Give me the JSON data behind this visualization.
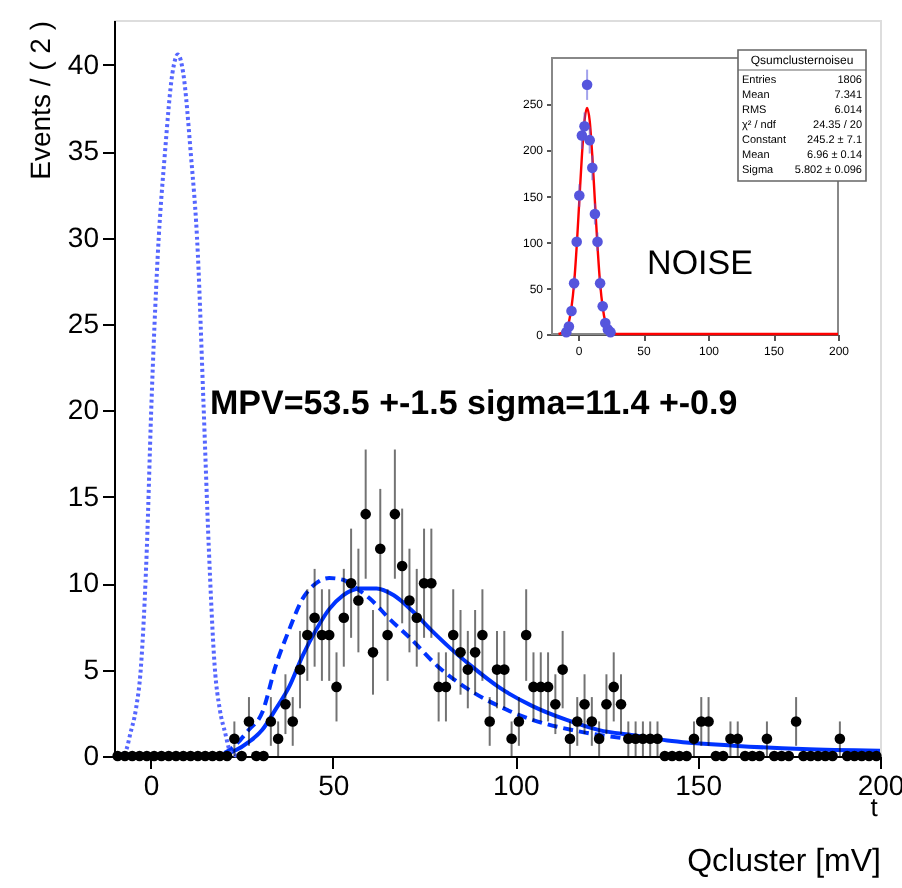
{
  "chart_data": [
    {
      "type": "scatter",
      "xlabel": "Qcluster [mV]",
      "ylabel": "Events / ( 2 )",
      "annotations": [
        "MPV=53.5 +-1.5 sigma=11.4 +-0.9",
        "t"
      ],
      "xlim": [
        -10,
        200
      ],
      "xticks": [
        0,
        50,
        100,
        150,
        200
      ],
      "ylim": [
        0,
        42.6
      ],
      "yticks": [
        0,
        5,
        10,
        15,
        20,
        25,
        30,
        35,
        40
      ],
      "series": [
        {
          "color": "#000000",
          "marker": "circle",
          "x": [
            -9,
            -7,
            -5,
            -3,
            -1,
            1,
            3,
            5,
            7,
            9,
            11,
            13,
            15,
            17,
            19,
            21,
            23,
            25,
            27,
            29,
            31,
            33,
            35,
            37,
            39,
            41,
            43,
            45,
            47,
            49,
            51,
            53,
            55,
            57,
            59,
            61,
            63,
            65,
            67,
            69,
            71,
            73,
            75,
            77,
            79,
            81,
            83,
            85,
            87,
            89,
            91,
            93,
            95,
            97,
            99,
            101,
            103,
            105,
            107,
            109,
            111,
            113,
            115,
            117,
            119,
            121,
            123,
            125,
            127,
            129,
            131,
            133,
            135,
            137,
            139,
            141,
            143,
            145,
            147,
            149,
            151,
            153,
            155,
            157,
            159,
            161,
            163,
            165,
            167,
            169,
            171,
            173,
            175,
            177,
            179,
            181,
            183,
            185,
            187,
            189,
            191,
            193,
            195,
            197,
            199
          ],
          "values": [
            0,
            0,
            0,
            0,
            0,
            0,
            0,
            0,
            0,
            0,
            0,
            0,
            0,
            0,
            0,
            0,
            1,
            0,
            2,
            0,
            0,
            2,
            1,
            3,
            2,
            5,
            7,
            8,
            7,
            7,
            4,
            8,
            10,
            9,
            14,
            6,
            12,
            7,
            14,
            11,
            9,
            8,
            10,
            10,
            4,
            4,
            7,
            6,
            5,
            6,
            7,
            2,
            5,
            5,
            1,
            2,
            7,
            4,
            4,
            4,
            3,
            5,
            1,
            2,
            3,
            2,
            1,
            3,
            4,
            3,
            1,
            1,
            1,
            1,
            1,
            0,
            0,
            0,
            0,
            1,
            2,
            2,
            0,
            0,
            1,
            1,
            0,
            0,
            0,
            1,
            0,
            0,
            0,
            2,
            0,
            0,
            0,
            0,
            0,
            1,
            0,
            0,
            0,
            0,
            0
          ],
          "errors": [
            null,
            null,
            null,
            null,
            null,
            null,
            null,
            null,
            null,
            null,
            null,
            null,
            null,
            null,
            null,
            null,
            1,
            null,
            1.41,
            null,
            null,
            1.41,
            1,
            1.73,
            1.41,
            2.24,
            2.65,
            2.83,
            2.65,
            2.65,
            2,
            2.83,
            3.16,
            3,
            3.74,
            2.45,
            3.46,
            2.65,
            3.74,
            3.32,
            3,
            2.83,
            3.16,
            3.16,
            2,
            2,
            2.65,
            2.45,
            2.24,
            2.45,
            2.65,
            1.41,
            2.24,
            2.24,
            1,
            1.41,
            2.65,
            2,
            2,
            2,
            1.73,
            2.24,
            1,
            1.41,
            1.73,
            1.41,
            1,
            1.73,
            2,
            1.73,
            1,
            1,
            1,
            1,
            1,
            null,
            null,
            null,
            null,
            1,
            1.41,
            1.41,
            null,
            null,
            1,
            1,
            null,
            null,
            null,
            1,
            null,
            null,
            null,
            1.41,
            null,
            null,
            null,
            null,
            null,
            1,
            null,
            null,
            null,
            null,
            null
          ]
        },
        {
          "type": "line",
          "color": "#0033ff",
          "line_style": "solid",
          "x": [
            -10,
            17.6,
            23.1,
            26.9,
            30.6,
            34.3,
            38,
            41.7,
            45.4,
            49,
            52.8,
            57.4,
            62,
            66.7,
            71.3,
            76.9,
            82.4,
            88,
            95.4,
            104.6,
            113.9,
            123,
            132.4,
            141.7,
            160,
            178.7,
            200
          ],
          "values": [
            0,
            0,
            0.3,
            0.8,
            1.5,
            2.7,
            4,
            5.8,
            7.3,
            8.5,
            9.3,
            9.7,
            9.7,
            9.3,
            8.5,
            7.3,
            6.2,
            5.2,
            4,
            2.9,
            2.1,
            1.5,
            1.2,
            0.9,
            0.6,
            0.4,
            0.3
          ]
        },
        {
          "type": "line",
          "color": "#0033ff",
          "line_style": "dashed",
          "x": [
            16,
            19.4,
            23.1,
            26.9,
            30.6,
            34.3,
            38,
            41.7,
            45.4,
            49,
            52.8,
            56.5,
            60.2,
            65.7,
            71.3,
            78.7,
            86.1,
            95.4,
            104.6,
            115.7,
            130.6
          ],
          "values": [
            0,
            0.1,
            0.6,
            1.5,
            2.5,
            5.2,
            7.3,
            9.1,
            10,
            10.3,
            10.2,
            9.7,
            9.1,
            7.9,
            6.8,
            5.2,
            4,
            2.9,
            2.1,
            1.5,
            1
          ]
        },
        {
          "type": "line",
          "color": "#5566ff",
          "line_style": "dotted",
          "x": [
            -9,
            -7,
            -5.4,
            -4,
            -2.6,
            -1,
            0.2,
            2,
            4,
            6,
            7.5,
            9,
            11,
            13,
            14.5,
            16,
            17.6,
            19,
            20.4,
            22,
            24
          ],
          "values": [
            0,
            0.2,
            1.4,
            2.7,
            5.2,
            12,
            20,
            29,
            35,
            39.5,
            40.6,
            39.5,
            35,
            29,
            20.6,
            12,
            5.2,
            2.7,
            1.4,
            0.2,
            0
          ]
        }
      ]
    },
    {
      "type": "scatter",
      "annotations": [
        "NOISE",
        "Qsumclusternoiseu",
        "Entries",
        "1806",
        "Mean",
        "7.341",
        "RMS",
        "6.014",
        "χ² / ndf",
        "24.35 / 20",
        "Constant",
        "245.2 ± 7.1",
        "Mean",
        "6.96 ± 0.14",
        "Sigma",
        "5.802 ± 0.096"
      ],
      "xlim": [
        -20,
        200
      ],
      "xticks": [
        0,
        50,
        100,
        150,
        200
      ],
      "ylim": [
        0,
        299
      ],
      "yticks": [
        0,
        50,
        100,
        150,
        200,
        250
      ],
      "series": [
        {
          "color": "#5555dd",
          "marker": "circle",
          "x": [
            -9,
            -7,
            -5,
            -3,
            -1,
            1,
            3,
            5,
            7,
            9,
            11,
            13,
            15,
            17,
            19,
            21,
            23,
            25
          ],
          "values": [
            2,
            8,
            25,
            55,
            100,
            150,
            215,
            225,
            270,
            210,
            180,
            130,
            100,
            55,
            30,
            12,
            5,
            2
          ],
          "errors": [
            1.4,
            2.8,
            5,
            7.4,
            null,
            12.2,
            14.7,
            15,
            16.4,
            14.5,
            13.4,
            11.4,
            10,
            7.4,
            5.5,
            3.5,
            null,
            null
          ]
        },
        {
          "type": "line",
          "color": "#ff0000",
          "line_style": "solid",
          "x": [
            -15,
            -13,
            -9,
            -7,
            -5,
            -3,
            -1,
            1,
            3,
            5,
            6.96,
            9,
            11,
            13,
            15,
            17,
            19,
            21,
            23,
            27,
            30,
            200
          ],
          "values": [
            0,
            1,
            5,
            13,
            29,
            55,
            95,
            144,
            193,
            231,
            245,
            231,
            193,
            144,
            95,
            55,
            29,
            13,
            5,
            1,
            0,
            0
          ]
        }
      ]
    }
  ]
}
